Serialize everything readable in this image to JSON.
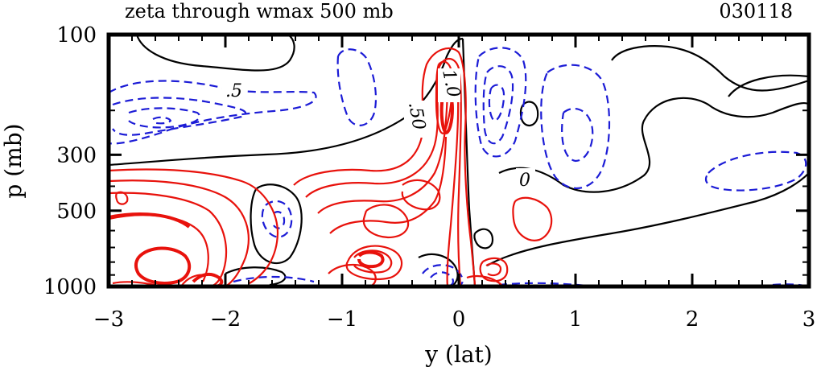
{
  "chart_data": {
    "type": "contour",
    "title": "zeta through wmax 500 mb",
    "date_label": "030118",
    "xlabel": "y (lat)",
    "ylabel": "p (mb)",
    "xlim": [
      -3,
      3
    ],
    "ylim": [
      1000,
      100
    ],
    "y_scale": "log",
    "x_ticks": [
      "-3",
      "-2",
      "-1",
      "0",
      "1",
      "2",
      "3"
    ],
    "y_ticks": [
      "100",
      "300",
      "500",
      "1000"
    ],
    "contour_labels": [
      ".5",
      "1.0",
      ".50",
      "0"
    ],
    "colors": {
      "positive": "#e8120c",
      "negative": "#1c1cd6",
      "zero": "#000000"
    }
  }
}
